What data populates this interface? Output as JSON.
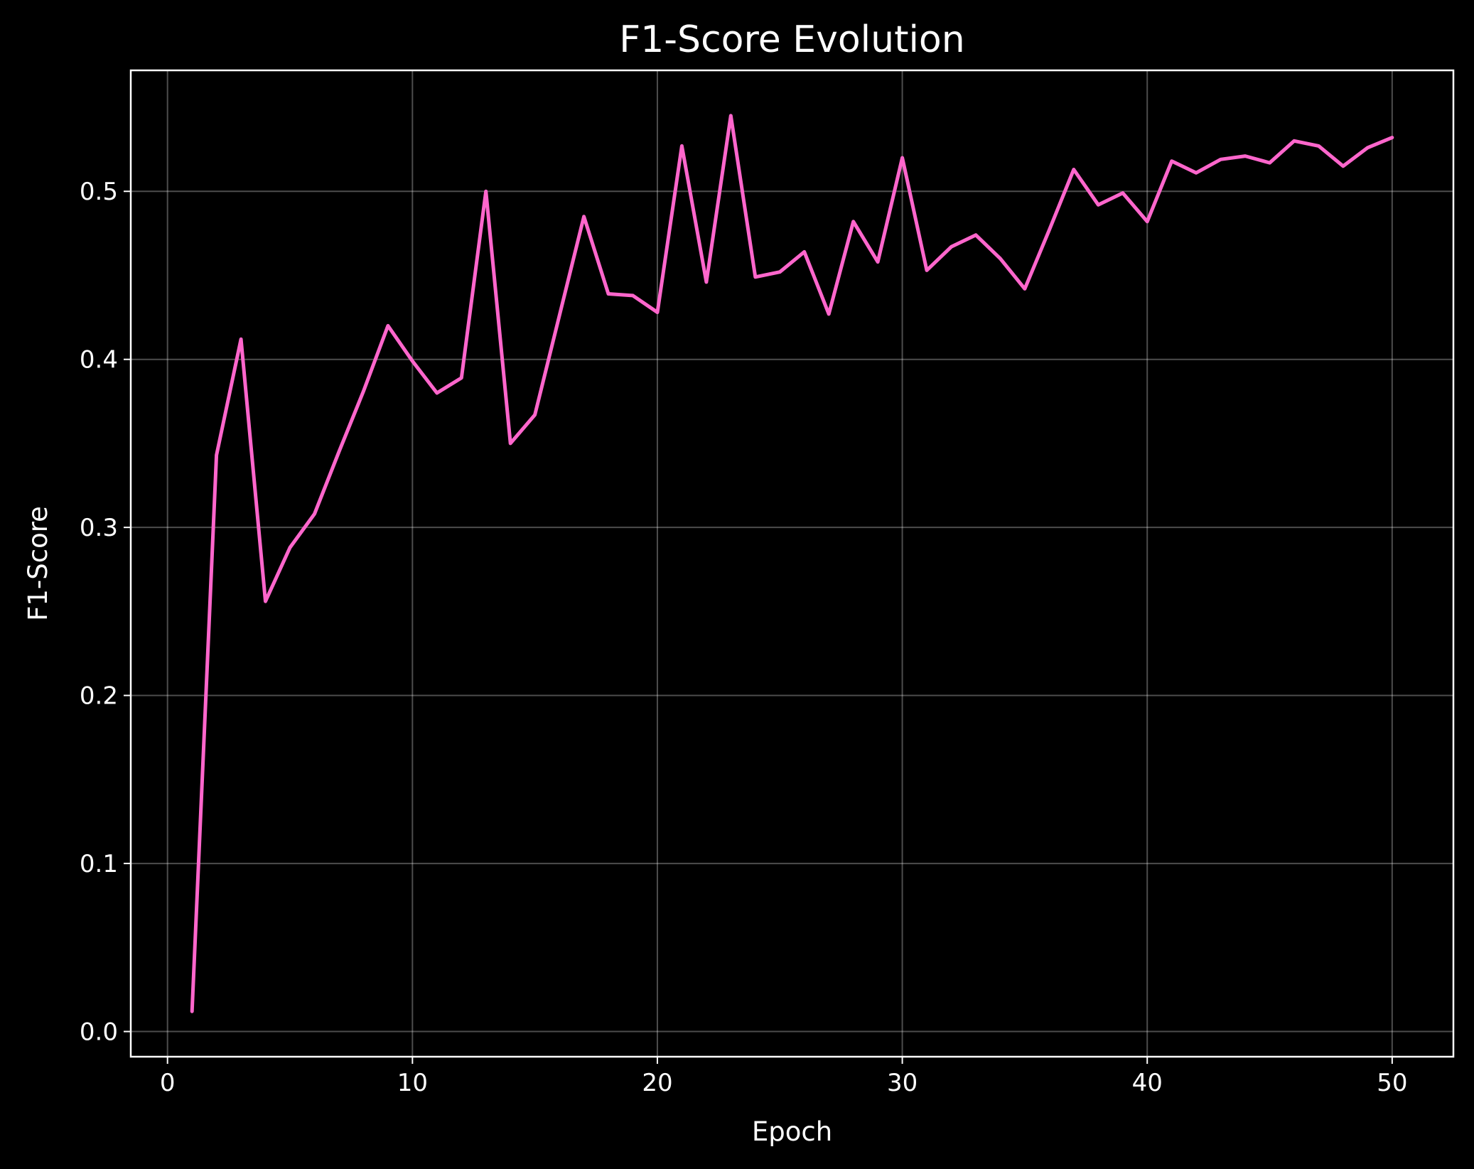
{
  "chart_data": {
    "type": "line",
    "title": "F1-Score Evolution",
    "xlabel": "Epoch",
    "ylabel": "F1-Score",
    "xlim": [
      -1.5,
      52.5
    ],
    "ylim": [
      -0.015,
      0.572
    ],
    "xticks": [
      0,
      10,
      20,
      30,
      40,
      50
    ],
    "yticks": [
      0.0,
      0.1,
      0.2,
      0.3,
      0.4,
      0.5
    ],
    "xtick_labels": [
      "0",
      "10",
      "20",
      "30",
      "40",
      "50"
    ],
    "ytick_labels": [
      "0.0",
      "0.1",
      "0.2",
      "0.3",
      "0.4",
      "0.5"
    ],
    "grid": true,
    "background": "#000000",
    "series": [
      {
        "color": "#ff66cc",
        "x": [
          1,
          2,
          3,
          4,
          5,
          6,
          7,
          8,
          9,
          10,
          11,
          12,
          13,
          14,
          15,
          16,
          17,
          18,
          19,
          20,
          21,
          22,
          23,
          24,
          25,
          26,
          27,
          28,
          29,
          30,
          31,
          32,
          33,
          34,
          35,
          36,
          37,
          38,
          39,
          40,
          41,
          42,
          43,
          44,
          45,
          46,
          47,
          48,
          49,
          50
        ],
        "y": [
          0.012,
          0.343,
          0.412,
          0.256,
          0.288,
          0.308,
          0.345,
          0.381,
          0.42,
          0.399,
          0.38,
          0.389,
          0.5,
          0.35,
          0.367,
          0.426,
          0.485,
          0.439,
          0.438,
          0.428,
          0.527,
          0.446,
          0.545,
          0.449,
          0.452,
          0.464,
          0.427,
          0.482,
          0.458,
          0.52,
          0.453,
          0.467,
          0.474,
          0.46,
          0.442,
          0.477,
          0.513,
          0.492,
          0.499,
          0.482,
          0.518,
          0.511,
          0.519,
          0.521,
          0.517,
          0.53,
          0.527,
          0.515,
          0.526,
          0.532
        ]
      }
    ]
  }
}
